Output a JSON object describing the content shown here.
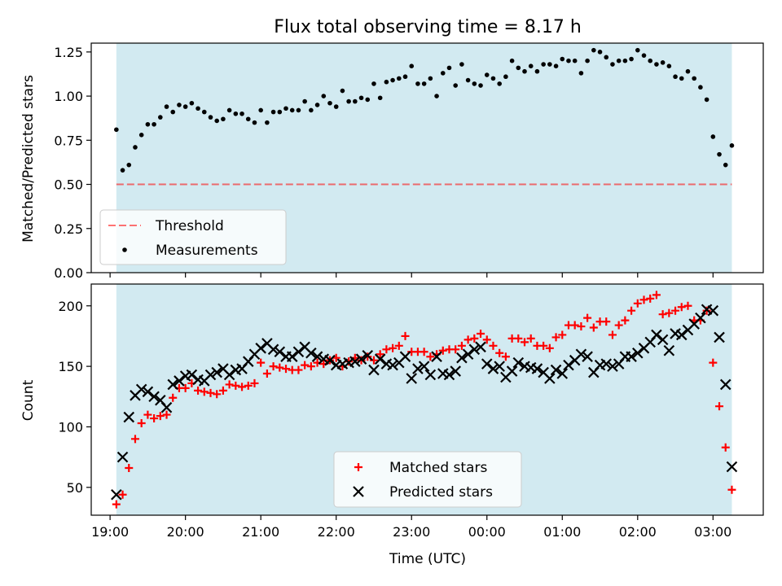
{
  "title": "Flux total observing time = 8.17 h",
  "colors": {
    "observing_band": "#add8e6",
    "threshold": "#ff0000",
    "measurements": "#000000",
    "matched": "#ff0000",
    "predicted": "#000000"
  },
  "chart_data": [
    {
      "type": "scatter",
      "panel": "top",
      "ylabel": "Matched/Predicted stars",
      "ylim": [
        0,
        1.3
      ],
      "yticks": [
        0,
        0.25,
        0.5,
        0.75,
        1.0,
        1.25
      ],
      "ytick_labels": [
        "0.00",
        "0.25",
        "0.50",
        "0.75",
        "1.00",
        "1.25"
      ],
      "x_is_hours_since_19utc": false,
      "band": {
        "start": "19:05",
        "end": "03:15"
      },
      "threshold": {
        "label": "Threshold",
        "value": 0.5
      },
      "series": [
        {
          "name": "Measurements",
          "marker": "dot",
          "x": [
            "19:05",
            "19:10",
            "19:15",
            "19:20",
            "19:25",
            "19:30",
            "19:35",
            "19:40",
            "19:45",
            "19:50",
            "19:55",
            "20:00",
            "20:05",
            "20:10",
            "20:15",
            "20:20",
            "20:25",
            "20:30",
            "20:35",
            "20:40",
            "20:45",
            "20:50",
            "20:55",
            "21:00",
            "21:05",
            "21:10",
            "21:15",
            "21:20",
            "21:25",
            "21:30",
            "21:35",
            "21:40",
            "21:45",
            "21:50",
            "21:55",
            "22:00",
            "22:05",
            "22:10",
            "22:15",
            "22:20",
            "22:25",
            "22:30",
            "22:35",
            "22:40",
            "22:45",
            "22:50",
            "22:55",
            "23:00",
            "23:05",
            "23:10",
            "23:15",
            "23:20",
            "23:25",
            "23:30",
            "23:35",
            "23:40",
            "23:45",
            "23:50",
            "23:55",
            "00:00",
            "00:05",
            "00:10",
            "00:15",
            "00:20",
            "00:25",
            "00:30",
            "00:35",
            "00:40",
            "00:45",
            "00:50",
            "00:55",
            "01:00",
            "01:05",
            "01:10",
            "01:15",
            "01:20",
            "01:25",
            "01:30",
            "01:35",
            "01:40",
            "01:45",
            "01:50",
            "01:55",
            "02:00",
            "02:05",
            "02:10",
            "02:15",
            "02:20",
            "02:25",
            "02:30",
            "02:35",
            "02:40",
            "02:45",
            "02:50",
            "02:55",
            "03:00",
            "03:05",
            "03:10",
            "03:15"
          ],
          "values": [
            0.81,
            0.58,
            0.61,
            0.71,
            0.78,
            0.84,
            0.84,
            0.88,
            0.94,
            0.91,
            0.95,
            0.94,
            0.96,
            0.93,
            0.91,
            0.88,
            0.86,
            0.87,
            0.92,
            0.9,
            0.9,
            0.87,
            0.85,
            0.92,
            0.85,
            0.91,
            0.91,
            0.93,
            0.92,
            0.92,
            0.97,
            0.92,
            0.95,
            1.0,
            0.96,
            0.94,
            1.03,
            0.97,
            0.97,
            0.99,
            0.98,
            1.07,
            0.99,
            1.08,
            1.09,
            1.1,
            1.11,
            1.17,
            1.07,
            1.07,
            1.1,
            1.0,
            1.13,
            1.16,
            1.06,
            1.18,
            1.09,
            1.07,
            1.06,
            1.12,
            1.1,
            1.07,
            1.11,
            1.2,
            1.16,
            1.14,
            1.17,
            1.14,
            1.18,
            1.18,
            1.17,
            1.21,
            1.2,
            1.2,
            1.13,
            1.2,
            1.26,
            1.25,
            1.22,
            1.18,
            1.2,
            1.2,
            1.21,
            1.26,
            1.23,
            1.2,
            1.18,
            1.19,
            1.17,
            1.11,
            1.1,
            1.14,
            1.1,
            1.05,
            0.98,
            0.77,
            0.67,
            0.61,
            0.72
          ]
        }
      ],
      "legend": {
        "position": "lower-left",
        "entries": [
          "Threshold",
          "Measurements"
        ]
      }
    },
    {
      "type": "scatter",
      "panel": "bottom",
      "xlabel": "Time (UTC)",
      "ylabel": "Count",
      "ylim": [
        27,
        218
      ],
      "yticks": [
        50,
        100,
        150,
        200
      ],
      "ytick_labels": [
        "50",
        "100",
        "150",
        "200"
      ],
      "xlim": [
        "18:45",
        "03:40"
      ],
      "xticks": [
        "19:00",
        "20:00",
        "21:00",
        "22:00",
        "23:00",
        "00:00",
        "01:00",
        "02:00",
        "03:00"
      ],
      "xtick_labels": [
        "19:00",
        "20:00",
        "21:00",
        "22:00",
        "23:00",
        "00:00",
        "01:00",
        "02:00",
        "03:00"
      ],
      "band": {
        "start": "19:05",
        "end": "03:15"
      },
      "series": [
        {
          "name": "Matched stars",
          "marker": "plus",
          "x": [
            "19:05",
            "19:10",
            "19:15",
            "19:20",
            "19:25",
            "19:30",
            "19:35",
            "19:40",
            "19:45",
            "19:50",
            "19:55",
            "20:00",
            "20:05",
            "20:10",
            "20:15",
            "20:20",
            "20:25",
            "20:30",
            "20:35",
            "20:40",
            "20:45",
            "20:50",
            "20:55",
            "21:00",
            "21:05",
            "21:10",
            "21:15",
            "21:20",
            "21:25",
            "21:30",
            "21:35",
            "21:40",
            "21:45",
            "21:50",
            "21:55",
            "22:00",
            "22:05",
            "22:10",
            "22:15",
            "22:20",
            "22:25",
            "22:30",
            "22:35",
            "22:40",
            "22:45",
            "22:50",
            "22:55",
            "23:00",
            "23:05",
            "23:10",
            "23:15",
            "23:20",
            "23:25",
            "23:30",
            "23:35",
            "23:40",
            "23:45",
            "23:50",
            "23:55",
            "00:00",
            "00:05",
            "00:10",
            "00:15",
            "00:20",
            "00:25",
            "00:30",
            "00:35",
            "00:40",
            "00:45",
            "00:50",
            "00:55",
            "01:00",
            "01:05",
            "01:10",
            "01:15",
            "01:20",
            "01:25",
            "01:30",
            "01:35",
            "01:40",
            "01:45",
            "01:50",
            "01:55",
            "02:00",
            "02:05",
            "02:10",
            "02:15",
            "02:20",
            "02:25",
            "02:30",
            "02:35",
            "02:40",
            "02:45",
            "02:50",
            "02:55",
            "03:00",
            "03:05",
            "03:10",
            "03:15"
          ],
          "values": [
            36,
            44,
            66,
            90,
            103,
            110,
            107,
            109,
            110,
            124,
            132,
            132,
            136,
            130,
            129,
            128,
            127,
            130,
            135,
            134,
            133,
            134,
            136,
            153,
            144,
            150,
            149,
            148,
            147,
            147,
            151,
            150,
            153,
            152,
            155,
            157,
            150,
            154,
            157,
            155,
            158,
            155,
            160,
            164,
            165,
            167,
            175,
            162,
            162,
            162,
            158,
            160,
            163,
            164,
            164,
            167,
            172,
            173,
            177,
            172,
            167,
            161,
            158,
            173,
            173,
            170,
            173,
            167,
            167,
            165,
            174,
            176,
            184,
            184,
            183,
            190,
            182,
            187,
            187,
            176,
            184,
            188,
            196,
            202,
            205,
            206,
            209,
            193,
            194,
            196,
            199,
            200,
            188,
            188,
            196,
            153,
            117,
            83,
            48
          ]
        },
        {
          "name": "Predicted stars",
          "marker": "x",
          "x": [
            "19:05",
            "19:10",
            "19:15",
            "19:20",
            "19:25",
            "19:30",
            "19:35",
            "19:40",
            "19:45",
            "19:50",
            "19:55",
            "20:00",
            "20:05",
            "20:10",
            "20:15",
            "20:20",
            "20:25",
            "20:30",
            "20:35",
            "20:40",
            "20:45",
            "20:50",
            "20:55",
            "21:00",
            "21:05",
            "21:10",
            "21:15",
            "21:20",
            "21:25",
            "21:30",
            "21:35",
            "21:40",
            "21:45",
            "21:50",
            "21:55",
            "22:00",
            "22:05",
            "22:10",
            "22:15",
            "22:20",
            "22:25",
            "22:30",
            "22:35",
            "22:40",
            "22:45",
            "22:50",
            "22:55",
            "23:00",
            "23:05",
            "23:10",
            "23:15",
            "23:20",
            "23:25",
            "23:30",
            "23:35",
            "23:40",
            "23:45",
            "23:50",
            "23:55",
            "00:00",
            "00:05",
            "00:10",
            "00:15",
            "00:20",
            "00:25",
            "00:30",
            "00:35",
            "00:40",
            "00:45",
            "00:50",
            "00:55",
            "01:00",
            "01:05",
            "01:10",
            "01:15",
            "01:20",
            "01:25",
            "01:30",
            "01:35",
            "01:40",
            "01:45",
            "01:50",
            "01:55",
            "02:00",
            "02:05",
            "02:10",
            "02:15",
            "02:20",
            "02:25",
            "02:30",
            "02:35",
            "02:40",
            "02:45",
            "02:50",
            "02:55",
            "03:00",
            "03:05",
            "03:10",
            "03:15"
          ],
          "values": [
            44,
            75,
            108,
            126,
            131,
            129,
            125,
            122,
            116,
            135,
            138,
            142,
            143,
            139,
            138,
            143,
            145,
            148,
            143,
            147,
            148,
            154,
            160,
            165,
            169,
            164,
            162,
            158,
            158,
            162,
            166,
            161,
            158,
            156,
            155,
            151,
            152,
            153,
            154,
            156,
            159,
            147,
            156,
            152,
            151,
            153,
            158,
            140,
            148,
            150,
            143,
            158,
            144,
            143,
            146,
            157,
            160,
            164,
            166,
            152,
            148,
            150,
            141,
            146,
            153,
            150,
            149,
            148,
            145,
            140,
            147,
            144,
            151,
            155,
            160,
            158,
            145,
            151,
            152,
            150,
            152,
            158,
            158,
            161,
            165,
            170,
            176,
            172,
            163,
            177,
            176,
            180,
            185,
            190,
            197,
            196,
            174,
            135,
            67
          ]
        }
      ],
      "legend": {
        "position": "lower-center",
        "entries": [
          "Matched stars",
          "Predicted stars"
        ]
      }
    }
  ]
}
